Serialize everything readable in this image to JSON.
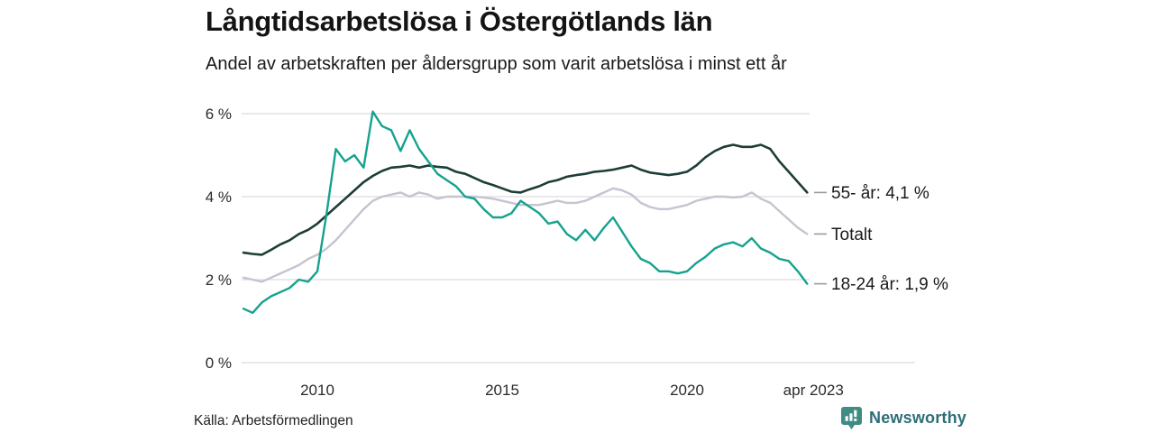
{
  "header": {
    "title": "Långtidsarbetslösa i Östergötlands län",
    "subtitle": "Andel av arbetskraften per åldersgrupp som varit arbetslösa i minst ett år"
  },
  "footer": {
    "source": "Källa: Arbetsförmedlingen",
    "brand": "Newsworthy"
  },
  "colors": {
    "series_55": "#1d3d38",
    "series_total": "#c5c4d0",
    "series_1824": "#15a28e",
    "gridline": "#dcdce0",
    "tick_text": "#2a2a2a",
    "end_label_text": "#1a1a1a",
    "end_label_dash": "#9a9a9a",
    "brand_icon": "#3e8c84",
    "brand_text": "#2e6e78"
  },
  "chart_data": {
    "type": "line",
    "title": "Långtidsarbetslösa i Östergötlands län",
    "subtitle": "Andel av arbetskraften per åldersgrupp som varit arbetslösa i minst ett år",
    "xlabel": "",
    "ylabel": "",
    "y_unit": "%",
    "grid": true,
    "legend_position": "right-end-labels",
    "ylim": [
      0,
      6.3
    ],
    "xlim": [
      2007.9,
      2023.6
    ],
    "y_ticks": [
      {
        "value": 0,
        "label": "0 %"
      },
      {
        "value": 2,
        "label": "2 %"
      },
      {
        "value": 4,
        "label": "4 %"
      },
      {
        "value": 6,
        "label": "6 %"
      }
    ],
    "x_ticks": [
      {
        "year": 2010,
        "label": "2010"
      },
      {
        "year": 2015,
        "label": "2015"
      },
      {
        "year": 2020,
        "label": "2020"
      },
      {
        "year": 2023.42,
        "label": "apr 2023"
      }
    ],
    "x": [
      2008.0,
      2008.25,
      2008.5,
      2008.75,
      2009.0,
      2009.25,
      2009.5,
      2009.75,
      2010.0,
      2010.25,
      2010.5,
      2010.75,
      2011.0,
      2011.25,
      2011.5,
      2011.75,
      2012.0,
      2012.25,
      2012.5,
      2012.75,
      2013.0,
      2013.25,
      2013.5,
      2013.75,
      2014.0,
      2014.25,
      2014.5,
      2014.75,
      2015.0,
      2015.25,
      2015.5,
      2015.75,
      2016.0,
      2016.25,
      2016.5,
      2016.75,
      2017.0,
      2017.25,
      2017.5,
      2017.75,
      2018.0,
      2018.25,
      2018.5,
      2018.75,
      2019.0,
      2019.25,
      2019.5,
      2019.75,
      2020.0,
      2020.25,
      2020.5,
      2020.75,
      2021.0,
      2021.25,
      2021.5,
      2021.75,
      2022.0,
      2022.25,
      2022.5,
      2022.75,
      2023.0,
      2023.25
    ],
    "series": [
      {
        "name": "55- år",
        "end_label": "55- år: 4,1 %",
        "end_value_text": "4,1 %",
        "color": "#1d3d38",
        "stroke_width": 2.6,
        "values": [
          2.65,
          2.62,
          2.6,
          2.72,
          2.85,
          2.95,
          3.1,
          3.2,
          3.35,
          3.55,
          3.75,
          3.95,
          4.15,
          4.35,
          4.5,
          4.62,
          4.7,
          4.72,
          4.75,
          4.7,
          4.75,
          4.72,
          4.7,
          4.6,
          4.55,
          4.45,
          4.35,
          4.28,
          4.2,
          4.12,
          4.1,
          4.18,
          4.25,
          4.35,
          4.4,
          4.48,
          4.52,
          4.55,
          4.6,
          4.62,
          4.65,
          4.7,
          4.75,
          4.65,
          4.58,
          4.55,
          4.52,
          4.55,
          4.6,
          4.75,
          4.95,
          5.1,
          5.2,
          5.25,
          5.2,
          5.2,
          5.25,
          5.15,
          4.85,
          4.6,
          4.35,
          4.1
        ]
      },
      {
        "name": "Totalt",
        "end_label": "Totalt",
        "end_value_text": "3,1 %",
        "color": "#c5c4d0",
        "stroke_width": 2.4,
        "values": [
          2.05,
          2.0,
          1.95,
          2.05,
          2.15,
          2.25,
          2.35,
          2.5,
          2.6,
          2.75,
          2.95,
          3.2,
          3.45,
          3.7,
          3.9,
          4.0,
          4.05,
          4.1,
          4.0,
          4.1,
          4.05,
          3.95,
          4.0,
          4.0,
          4.0,
          4.0,
          3.98,
          3.95,
          3.9,
          3.85,
          3.8,
          3.8,
          3.8,
          3.85,
          3.9,
          3.85,
          3.85,
          3.9,
          4.0,
          4.1,
          4.2,
          4.15,
          4.05,
          3.85,
          3.75,
          3.7,
          3.7,
          3.75,
          3.8,
          3.9,
          3.95,
          4.0,
          4.0,
          3.98,
          4.0,
          4.1,
          3.95,
          3.85,
          3.65,
          3.45,
          3.25,
          3.1
        ]
      },
      {
        "name": "18-24 år",
        "end_label": "18-24 år: 1,9 %",
        "end_value_text": "1,9 %",
        "color": "#15a28e",
        "stroke_width": 2.4,
        "values": [
          1.3,
          1.2,
          1.45,
          1.6,
          1.7,
          1.8,
          2.0,
          1.95,
          2.2,
          3.6,
          5.15,
          4.85,
          5.0,
          4.7,
          6.05,
          5.7,
          5.6,
          5.1,
          5.6,
          5.15,
          4.85,
          4.55,
          4.4,
          4.25,
          4.0,
          3.95,
          3.7,
          3.5,
          3.5,
          3.6,
          3.9,
          3.75,
          3.6,
          3.35,
          3.4,
          3.1,
          2.95,
          3.2,
          2.95,
          3.25,
          3.5,
          3.15,
          2.8,
          2.5,
          2.4,
          2.2,
          2.2,
          2.15,
          2.2,
          2.4,
          2.55,
          2.75,
          2.85,
          2.9,
          2.8,
          3.0,
          2.75,
          2.65,
          2.5,
          2.45,
          2.2,
          1.9
        ]
      }
    ]
  }
}
